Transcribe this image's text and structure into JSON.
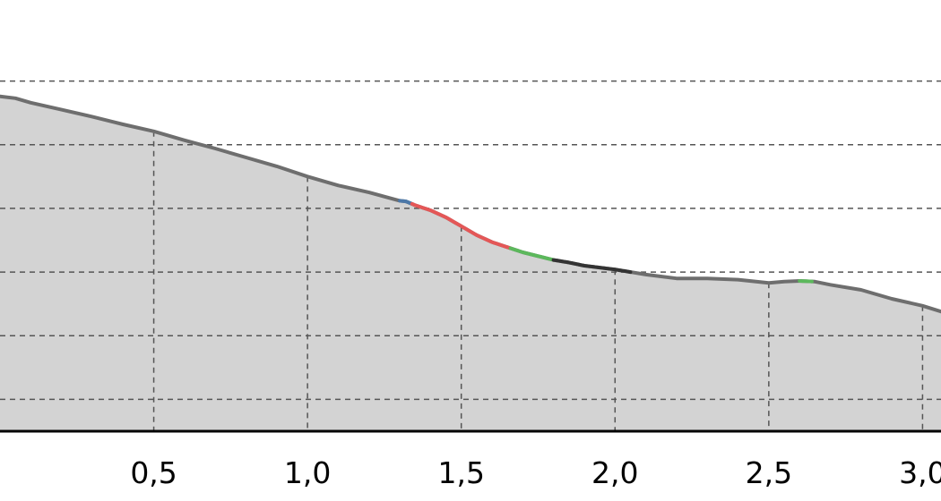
{
  "chart_data": {
    "type": "area",
    "xlabel": "",
    "ylabel": "",
    "x_ticks": [
      {
        "value": 0.5,
        "label": "0,5"
      },
      {
        "value": 1.0,
        "label": "1,0"
      },
      {
        "value": 1.5,
        "label": "1,5"
      },
      {
        "value": 2.0,
        "label": "2,0"
      },
      {
        "value": 2.5,
        "label": "2,5"
      },
      {
        "value": 3.0,
        "label": "3,0"
      }
    ],
    "xlim": [
      0.0,
      3.06
    ],
    "ylim": [
      0,
      6
    ],
    "y_gridlines": [
      0.5,
      1.5,
      2.5,
      3.5,
      4.5,
      5.5
    ],
    "grid": true,
    "fill_color": "#d3d3d3",
    "line_color": "#6e6e6e",
    "x": [
      0.0,
      0.05,
      0.1,
      0.2,
      0.3,
      0.4,
      0.5,
      0.6,
      0.7,
      0.8,
      0.9,
      1.0,
      1.1,
      1.2,
      1.3,
      1.32,
      1.35,
      1.4,
      1.45,
      1.5,
      1.55,
      1.6,
      1.65,
      1.7,
      1.75,
      1.8,
      1.85,
      1.9,
      2.0,
      2.1,
      2.2,
      2.3,
      2.4,
      2.5,
      2.55,
      2.6,
      2.65,
      2.7,
      2.8,
      2.9,
      3.0,
      3.06
    ],
    "y": [
      5.26,
      5.23,
      5.16,
      5.05,
      4.94,
      4.82,
      4.71,
      4.57,
      4.44,
      4.3,
      4.16,
      4.0,
      3.86,
      3.75,
      3.62,
      3.61,
      3.55,
      3.47,
      3.36,
      3.22,
      3.08,
      2.97,
      2.89,
      2.81,
      2.75,
      2.69,
      2.65,
      2.6,
      2.54,
      2.46,
      2.4,
      2.4,
      2.38,
      2.33,
      2.35,
      2.36,
      2.35,
      2.3,
      2.22,
      2.08,
      1.97,
      1.88
    ],
    "segments": [
      {
        "from": 1.3,
        "to": 1.34,
        "color": "#4c78a8"
      },
      {
        "from": 1.34,
        "to": 1.66,
        "color": "#e45757"
      },
      {
        "from": 1.66,
        "to": 1.8,
        "color": "#5cb85c"
      },
      {
        "from": 1.8,
        "to": 2.05,
        "color": "#333333"
      },
      {
        "from": 2.6,
        "to": 2.64,
        "color": "#5cb85c"
      }
    ]
  }
}
